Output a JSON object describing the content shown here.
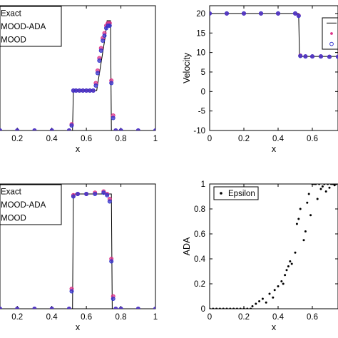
{
  "chart_data": [
    {
      "type": "line",
      "xlabel": "x",
      "ylabel": "",
      "xlim": [
        0.1,
        1.0
      ],
      "ylim": [
        0.0,
        5.0
      ],
      "xticks": [
        "0.2",
        "0.4",
        "0.6",
        "0.8",
        "1"
      ],
      "yticks": [],
      "grid": false,
      "legend": {
        "placement": "top-left",
        "entries": [
          "Exact",
          "MOOD-ADA",
          "MOOD"
        ]
      },
      "series": [
        {
          "name": "Exact",
          "style": "line",
          "color": "#000000",
          "x": [
            0.1,
            0.52,
            0.525,
            0.655,
            0.66,
            0.71,
            0.72,
            0.74,
            0.745,
            1.0
          ],
          "y": [
            0.0,
            0.0,
            1.6,
            1.6,
            1.6,
            3.8,
            4.4,
            4.4,
            0.0,
            0.0
          ]
        },
        {
          "name": "MOOD-ADA",
          "style": "markers",
          "color": "#dd3388",
          "x": [
            0.1,
            0.2,
            0.3,
            0.4,
            0.5,
            0.515,
            0.525,
            0.54,
            0.56,
            0.58,
            0.6,
            0.62,
            0.64,
            0.655,
            0.665,
            0.675,
            0.685,
            0.695,
            0.705,
            0.715,
            0.725,
            0.735,
            0.745,
            0.755,
            0.77,
            0.8,
            0.9,
            1.0
          ],
          "y": [
            0.0,
            0.0,
            0.0,
            0.0,
            0.0,
            0.25,
            1.6,
            1.6,
            1.6,
            1.6,
            1.6,
            1.6,
            1.6,
            1.9,
            2.4,
            2.9,
            3.3,
            3.7,
            3.9,
            4.2,
            4.3,
            4.3,
            2.0,
            0.6,
            0.0,
            0.0,
            0.0,
            0.0
          ]
        },
        {
          "name": "MOOD",
          "style": "markers",
          "color": "#3333cc",
          "x": [
            0.1,
            0.2,
            0.3,
            0.4,
            0.5,
            0.515,
            0.525,
            0.54,
            0.56,
            0.58,
            0.6,
            0.62,
            0.64,
            0.655,
            0.665,
            0.675,
            0.685,
            0.695,
            0.705,
            0.715,
            0.725,
            0.735,
            0.745,
            0.755,
            0.77,
            0.8,
            0.9,
            1.0
          ],
          "y": [
            0.0,
            0.0,
            0.0,
            0.0,
            0.0,
            0.2,
            1.6,
            1.6,
            1.6,
            1.6,
            1.6,
            1.6,
            1.6,
            1.8,
            2.3,
            2.8,
            3.2,
            3.6,
            3.8,
            4.1,
            4.2,
            4.2,
            1.9,
            0.5,
            0.0,
            0.0,
            0.0,
            0.0
          ]
        }
      ]
    },
    {
      "type": "line",
      "xlabel": "x",
      "ylabel": "Velocity",
      "xlim": [
        0.0,
        0.75
      ],
      "ylim": [
        -10,
        22
      ],
      "xticks": [
        "0",
        "0.2",
        "0.4",
        "0.6"
      ],
      "yticks": [
        "-10",
        "-5",
        "0",
        "5",
        "10",
        "15",
        "20"
      ],
      "grid": false,
      "legend": {
        "placement": "top-right",
        "entries": [
          "",
          "",
          ""
        ]
      },
      "series": [
        {
          "name": "",
          "style": "line",
          "color": "#000000",
          "x": [
            0.0,
            0.52,
            0.525,
            0.75
          ],
          "y": [
            20,
            20,
            9,
            9
          ]
        },
        {
          "name": "",
          "style": "markers",
          "color": "#dd3388",
          "x": [
            0.0,
            0.1,
            0.2,
            0.3,
            0.4,
            0.5,
            0.52,
            0.53,
            0.56,
            0.6,
            0.65,
            0.7,
            0.75
          ],
          "y": [
            20,
            20,
            20,
            20,
            20,
            20,
            19.5,
            9.2,
            9.0,
            9.0,
            9.0,
            8.9,
            8.9
          ]
        },
        {
          "name": "",
          "style": "markers",
          "color": "#3333cc",
          "x": [
            0.0,
            0.1,
            0.2,
            0.3,
            0.4,
            0.5,
            0.52,
            0.53,
            0.56,
            0.6,
            0.65,
            0.7,
            0.75
          ],
          "y": [
            20,
            20,
            20,
            20,
            20,
            20,
            19.4,
            9.1,
            9.0,
            9.0,
            9.0,
            8.9,
            8.9
          ]
        }
      ]
    },
    {
      "type": "line",
      "xlabel": "x",
      "ylabel": "",
      "xlim": [
        0.1,
        1.0
      ],
      "ylim": [
        0.0,
        5.0
      ],
      "xticks": [
        "0.2",
        "0.4",
        "0.6",
        "0.8",
        "1"
      ],
      "yticks": [],
      "grid": false,
      "legend": {
        "placement": "top-left",
        "entries": [
          "Exact",
          "MOOD-ADA",
          "MOOD"
        ]
      },
      "series": [
        {
          "name": "Exact",
          "style": "line",
          "color": "#000000",
          "x": [
            0.1,
            0.52,
            0.525,
            0.745,
            0.75,
            1.0
          ],
          "y": [
            0.0,
            0.0,
            4.6,
            4.6,
            0.0,
            0.0
          ]
        },
        {
          "name": "MOOD-ADA",
          "style": "markers",
          "color": "#dd3388",
          "x": [
            0.1,
            0.2,
            0.3,
            0.4,
            0.5,
            0.515,
            0.525,
            0.55,
            0.6,
            0.65,
            0.7,
            0.72,
            0.735,
            0.745,
            0.755,
            0.77,
            0.8,
            0.9,
            1.0
          ],
          "y": [
            0.0,
            0.0,
            0.0,
            0.0,
            0.0,
            0.8,
            4.55,
            4.6,
            4.6,
            4.65,
            4.7,
            4.6,
            4.4,
            2.0,
            0.5,
            0.0,
            0.0,
            0.0,
            0.0
          ]
        },
        {
          "name": "MOOD",
          "style": "markers",
          "color": "#3333cc",
          "x": [
            0.1,
            0.2,
            0.3,
            0.4,
            0.5,
            0.515,
            0.525,
            0.55,
            0.6,
            0.65,
            0.7,
            0.72,
            0.735,
            0.745,
            0.755,
            0.77,
            0.8,
            0.9,
            1.0
          ],
          "y": [
            0.0,
            0.0,
            0.0,
            0.0,
            0.0,
            0.7,
            4.5,
            4.6,
            4.6,
            4.6,
            4.65,
            4.55,
            4.3,
            1.9,
            0.4,
            0.0,
            0.0,
            0.0,
            0.0
          ]
        }
      ]
    },
    {
      "type": "scatter",
      "xlabel": "x",
      "ylabel": "ADA",
      "xlim": [
        0.0,
        0.75
      ],
      "ylim": [
        0.0,
        1.0
      ],
      "xticks": [
        "0",
        "0.2",
        "0.4",
        "0.6"
      ],
      "yticks": [
        "0",
        "0.2",
        "0.4",
        "0.6",
        "0.8",
        "1"
      ],
      "grid": false,
      "legend": {
        "placement": "top-left",
        "entries": [
          "Epsilon"
        ]
      },
      "series": [
        {
          "name": "Epsilon",
          "style": "markers",
          "color": "#000000",
          "x": [
            0.0,
            0.02,
            0.04,
            0.06,
            0.08,
            0.1,
            0.12,
            0.14,
            0.16,
            0.18,
            0.2,
            0.22,
            0.24,
            0.25,
            0.27,
            0.29,
            0.31,
            0.33,
            0.35,
            0.37,
            0.38,
            0.4,
            0.42,
            0.43,
            0.44,
            0.45,
            0.46,
            0.47,
            0.48,
            0.5,
            0.51,
            0.52,
            0.53,
            0.55,
            0.56,
            0.57,
            0.58,
            0.59,
            0.6,
            0.61,
            0.62,
            0.63,
            0.64,
            0.65,
            0.66,
            0.67,
            0.68,
            0.69,
            0.7,
            0.71,
            0.72,
            0.73,
            0.74
          ],
          "y": [
            0.0,
            0.0,
            0.0,
            0.0,
            0.0,
            0.0,
            0.0,
            0.0,
            0.0,
            0.0,
            0.0,
            0.0,
            0.0,
            0.02,
            0.04,
            0.06,
            0.08,
            0.05,
            0.12,
            0.09,
            0.15,
            0.18,
            0.22,
            0.2,
            0.27,
            0.31,
            0.34,
            0.38,
            0.36,
            0.45,
            0.68,
            0.72,
            0.8,
            0.55,
            0.62,
            0.85,
            0.92,
            0.75,
            1.0,
            1.0,
            1.0,
            0.88,
            1.0,
            0.96,
            0.98,
            1.0,
            0.94,
            1.0,
            0.97,
            1.0,
            1.0,
            0.99,
            1.0
          ]
        }
      ]
    }
  ]
}
